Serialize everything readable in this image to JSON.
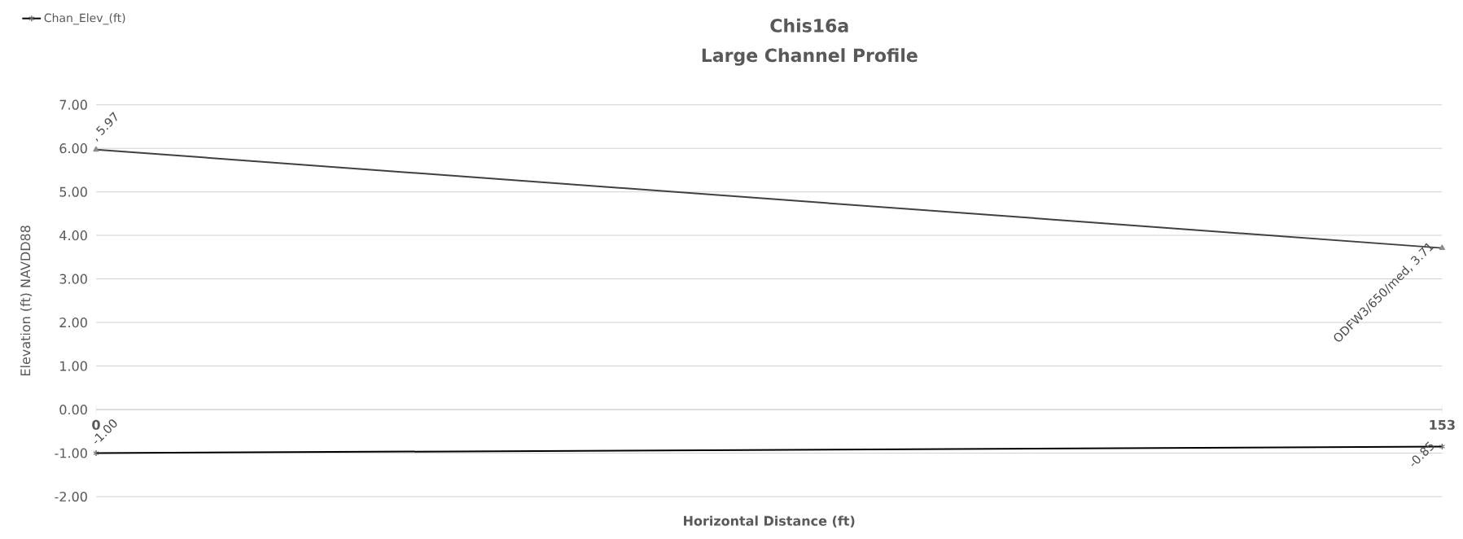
{
  "chart_data": {
    "type": "line",
    "title": "Chis16a",
    "subtitle": "Large Channel Profile",
    "xlabel": "Horizontal Distance (ft)",
    "ylabel": "Elevation (ft) NAVDD88",
    "x": [
      0,
      153
    ],
    "xlim": [
      0,
      153
    ],
    "xticks": [
      0,
      153
    ],
    "ylim": [
      -2,
      7
    ],
    "yticks": [
      {
        "value": -2,
        "label": "-2.00"
      },
      {
        "value": -1,
        "label": "-1.00"
      },
      {
        "value": 0,
        "label": "0.00"
      },
      {
        "value": 1,
        "label": "1.00"
      },
      {
        "value": 2,
        "label": "2.00"
      },
      {
        "value": 3,
        "label": "3.00"
      },
      {
        "value": 4,
        "label": "4.00"
      },
      {
        "value": 5,
        "label": "5.00"
      },
      {
        "value": 6,
        "label": "6.00"
      },
      {
        "value": 7,
        "label": "7.00"
      }
    ],
    "grid": "y",
    "legend": "top left",
    "series": [
      {
        "name": "Chan_Elev_(ft)",
        "color": "#000000",
        "marker": "cross",
        "values": [
          -1.0,
          -0.85
        ],
        "value_labels": [
          "-1.00",
          "-0.85"
        ]
      },
      {
        "color": "#404040",
        "marker": "triangle",
        "values": [
          5.97,
          3.71
        ],
        "value_labels": [
          ", 5.97",
          "ODFW3/650/med, 3.71"
        ]
      }
    ]
  }
}
